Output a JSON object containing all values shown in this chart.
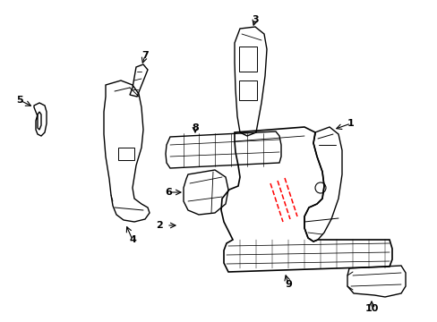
{
  "bg_color": "#ffffff",
  "line_color": "#000000",
  "red_color": "#ff0000",
  "figsize": [
    4.89,
    3.6
  ],
  "dpi": 100
}
